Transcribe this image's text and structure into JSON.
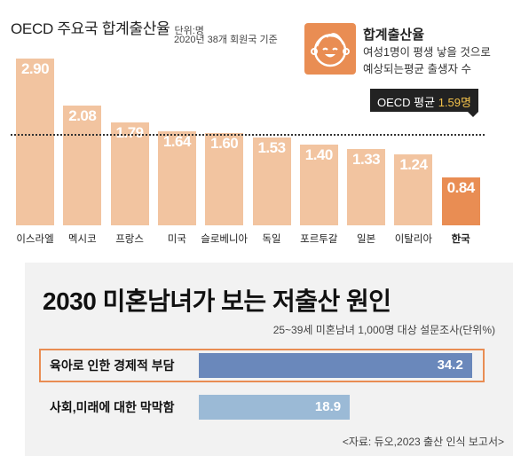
{
  "top": {
    "title": "OECD 주요국 합계출산율",
    "unit": "단위:명",
    "note": "2020년 38개 회원국 기준",
    "legend": {
      "icon": "baby-face-icon",
      "title": "합계출산율",
      "desc1": "여성1명이 평생 낳을 것으로",
      "desc2": "예상되는평균 출생자 수"
    },
    "average": {
      "label": "OECD 평균",
      "value": "1.59명",
      "number": 1.59
    }
  },
  "chart_data": [
    {
      "type": "bar",
      "title": "OECD 주요국 합계출산율",
      "unit": "단위:명",
      "categories": [
        "이스라엘",
        "멕시코",
        "프랑스",
        "미국",
        "슬로베니아",
        "독일",
        "포르투갈",
        "일본",
        "이탈리아",
        "한국"
      ],
      "values": [
        2.9,
        2.08,
        1.79,
        1.64,
        1.6,
        1.53,
        1.4,
        1.33,
        1.24,
        0.84
      ],
      "value_labels": [
        "2.90",
        "2.08",
        "1.79",
        "1.64",
        "1.60",
        "1.53",
        "1.40",
        "1.33",
        "1.24",
        "0.84"
      ],
      "highlight": "한국",
      "reference_line": {
        "label": "OECD 평균 1.59명",
        "value": 1.59
      },
      "colors": {
        "bar": "#f2c4a0",
        "highlight": "#e98d53"
      },
      "ylim": [
        0,
        3.1
      ]
    },
    {
      "type": "bar",
      "orientation": "horizontal",
      "title": "2030 미혼남녀가 보는 저출산 원인",
      "categories": [
        "육아로 인한 경제적 부담",
        "사회,미래에 대한 막막함"
      ],
      "values": [
        34.2,
        18.9
      ],
      "value_labels": [
        "34.2",
        "18.9"
      ],
      "colors": [
        "#6a88bb",
        "#9bbad6"
      ],
      "highlight_frame": "#e98d53",
      "xlim": [
        0,
        36
      ]
    }
  ],
  "bottom": {
    "title": "2030 미혼남녀가 보는 저출산 원인",
    "subtitle": "25~39세 미혼남녀 1,000명 대상 설문조사(단위%)",
    "source": "<자료: 듀오,2023 출산 인식 보고서>"
  }
}
